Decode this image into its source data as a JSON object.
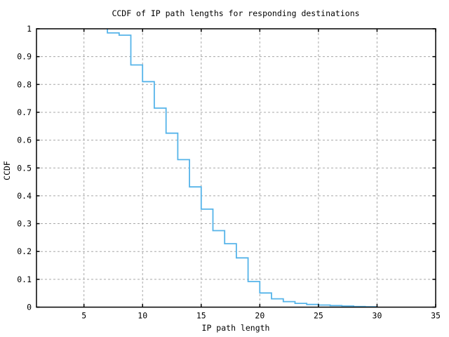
{
  "chart_data": {
    "type": "line",
    "style": "step-ccdf",
    "title": "CCDF of IP path lengths for responding destinations",
    "xlabel": "IP path length",
    "ylabel": "CCDF",
    "xlim": [
      1,
      35
    ],
    "ylim": [
      0,
      1
    ],
    "x_ticks": [
      5,
      10,
      15,
      20,
      25,
      30,
      35
    ],
    "x_tick_labels": [
      "5",
      "10",
      "15",
      "20",
      "25",
      "30",
      "35"
    ],
    "y_ticks": [
      0,
      0.1,
      0.2,
      0.3,
      0.4,
      0.5,
      0.6,
      0.7,
      0.8,
      0.9,
      1
    ],
    "y_tick_labels": [
      "0",
      "0.1",
      "0.2",
      "0.3",
      "0.4",
      "0.5",
      "0.6",
      "0.7",
      "0.8",
      "0.9",
      "1"
    ],
    "grid": true,
    "legend": "none",
    "line_color": "#56b4e9",
    "grid_color": "#a8a8a8",
    "border_color": "#000000",
    "series": [
      {
        "name": "CCDF of IP path length",
        "start_level": 1.0,
        "first_drop_x": 7,
        "steps": [
          [
            7,
            0.985
          ],
          [
            8,
            0.977
          ],
          [
            9,
            0.87
          ],
          [
            10,
            0.81
          ],
          [
            11,
            0.715
          ],
          [
            12,
            0.625
          ],
          [
            13,
            0.53
          ],
          [
            14,
            0.432
          ],
          [
            15,
            0.352
          ],
          [
            16,
            0.275
          ],
          [
            17,
            0.228
          ],
          [
            18,
            0.177
          ],
          [
            19,
            0.092
          ],
          [
            20,
            0.051
          ],
          [
            21,
            0.03
          ],
          [
            22,
            0.02
          ],
          [
            23,
            0.0135
          ],
          [
            24,
            0.0095
          ],
          [
            25,
            0.0075
          ],
          [
            26,
            0.0055
          ],
          [
            27,
            0.004
          ],
          [
            28,
            0.002
          ],
          [
            29,
            0.0012
          ],
          [
            30,
            0
          ]
        ]
      }
    ]
  }
}
